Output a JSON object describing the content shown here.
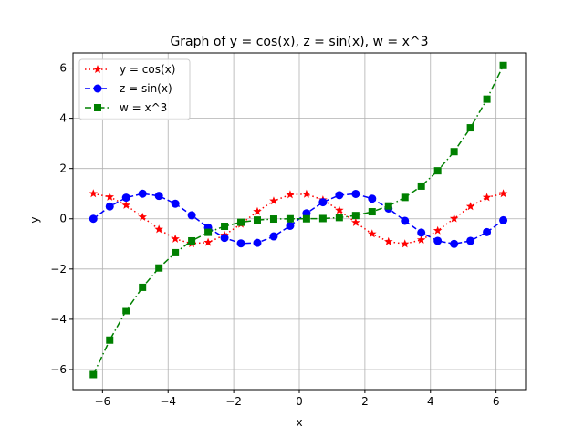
{
  "chart_data": {
    "type": "line",
    "title": "Graph of y = cos(x), z = sin(x), w = x^3",
    "xlabel": "x",
    "ylabel": "y",
    "xlim": [
      -6.9,
      6.9
    ],
    "ylim": [
      -6.8,
      6.6
    ],
    "xticks": [
      -6,
      -4,
      -2,
      0,
      2,
      4,
      6
    ],
    "yticks": [
      -6,
      -4,
      -2,
      0,
      2,
      4,
      6
    ],
    "grid": true,
    "legend": "top-left",
    "x": [
      -6.28,
      -5.78,
      -5.28,
      -4.78,
      -4.28,
      -3.78,
      -3.28,
      -2.78,
      -2.28,
      -1.78,
      -1.28,
      -0.78,
      -0.28,
      0.22,
      0.72,
      1.22,
      1.72,
      2.22,
      2.72,
      3.22,
      3.72,
      4.22,
      4.72,
      5.22,
      5.72,
      6.22
    ],
    "series": [
      {
        "name": "y = cos(x)",
        "color": "#ff0000",
        "linestyle": "dotted",
        "marker": "star",
        "values": [
          1.0,
          0.87,
          0.54,
          0.07,
          -0.42,
          -0.8,
          -0.99,
          -0.94,
          -0.65,
          -0.21,
          0.29,
          0.71,
          0.96,
          0.98,
          0.75,
          0.34,
          -0.15,
          -0.6,
          -0.91,
          -1.0,
          -0.84,
          -0.47,
          0.01,
          0.49,
          0.85,
          1.0
        ]
      },
      {
        "name": "z = sin(x)",
        "color": "#0000ff",
        "linestyle": "dashed",
        "marker": "circle",
        "values": [
          0.0,
          0.49,
          0.84,
          1.0,
          0.91,
          0.6,
          0.14,
          -0.35,
          -0.76,
          -0.98,
          -0.96,
          -0.7,
          -0.28,
          0.22,
          0.66,
          0.94,
          0.99,
          0.8,
          0.41,
          -0.08,
          -0.55,
          -0.88,
          -1.0,
          -0.88,
          -0.53,
          -0.06
        ]
      },
      {
        "name": "w = x^3",
        "color": "#008000",
        "linestyle": "dashdot",
        "marker": "square",
        "values": [
          -6.2,
          -4.83,
          -3.66,
          -2.73,
          -1.96,
          -1.35,
          -0.88,
          -0.54,
          -0.3,
          -0.14,
          -0.05,
          -0.01,
          0.0,
          0.0,
          0.01,
          0.05,
          0.13,
          0.28,
          0.51,
          0.85,
          1.3,
          1.91,
          2.67,
          3.62,
          4.76,
          6.1
        ]
      }
    ]
  }
}
